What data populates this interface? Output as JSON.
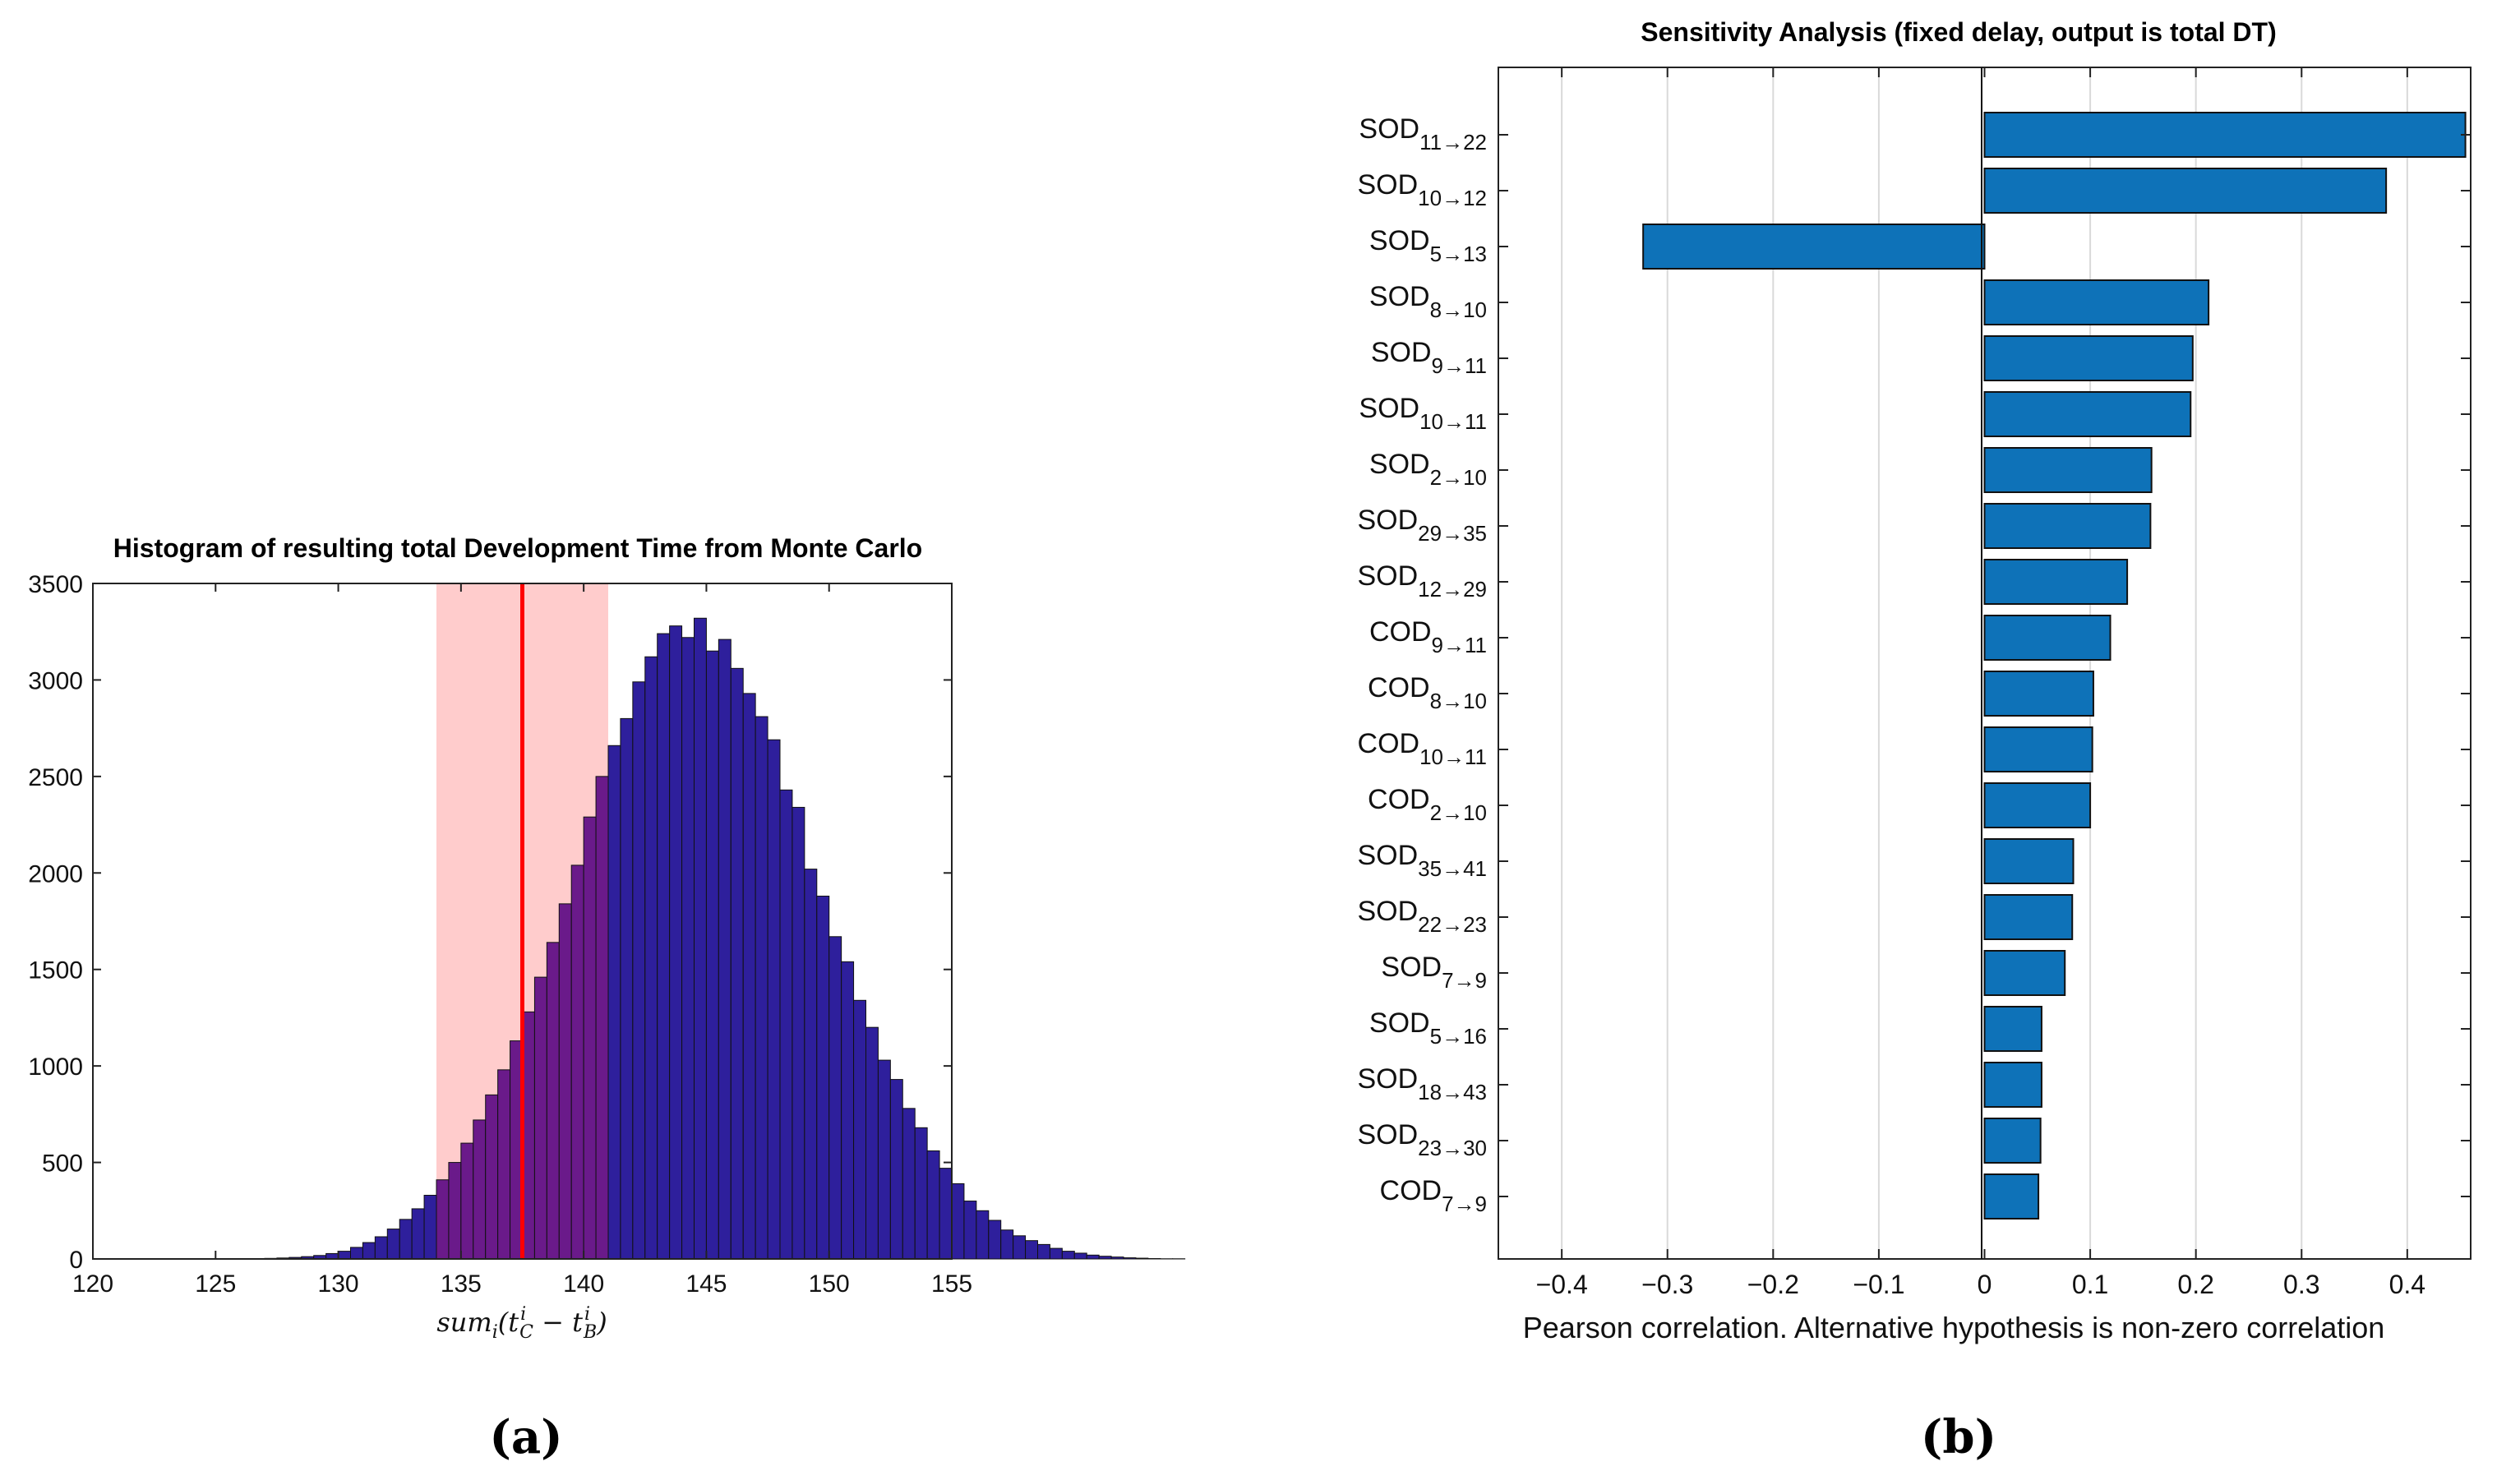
{
  "chart_data": [
    {
      "id": "a",
      "type": "bar",
      "subtype": "histogram",
      "title": "Histogram of resulting total Development Time from Monte Carlo",
      "xlabel": "sum_i(t_C^i − t_B^i)",
      "xlabel_parts": {
        "fn": "sum",
        "fn_sub": "i",
        "open": "(t",
        "c_sub": "C",
        "c_sup": "i",
        "minus": " − t",
        "b_sub": "B",
        "b_sup": "i",
        "close": ")"
      },
      "ylabel": "",
      "xlim": [
        120,
        155
      ],
      "ylim": [
        0,
        3500
      ],
      "xticks": [
        120,
        125,
        130,
        135,
        140,
        145,
        150,
        155
      ],
      "yticks": [
        0,
        500,
        1000,
        1500,
        2000,
        2500,
        3000,
        3500
      ],
      "bin_start": 120,
      "bin_width": 0.5,
      "counts": [
        0,
        0,
        0,
        0,
        0,
        0,
        0,
        0,
        0,
        0,
        0,
        1,
        1,
        2,
        3,
        5,
        8,
        12,
        18,
        28,
        40,
        60,
        85,
        115,
        155,
        205,
        260,
        330,
        410,
        500,
        600,
        720,
        850,
        980,
        1130,
        1280,
        1460,
        1640,
        1840,
        2040,
        2290,
        2500,
        2660,
        2800,
        2990,
        3120,
        3240,
        3280,
        3220,
        3320,
        3150,
        3210,
        3060,
        2930,
        2810,
        2690,
        2430,
        2340,
        2020,
        1880,
        1670,
        1540,
        1340,
        1200,
        1030,
        930,
        780,
        680,
        560,
        470,
        390,
        300,
        250,
        200,
        150,
        120,
        95,
        75,
        55,
        40,
        30,
        20,
        14,
        10,
        6,
        4,
        2,
        1,
        1,
        0
      ],
      "highlight_range": [
        134,
        141
      ],
      "highlight_color": "#ffcccc",
      "mean_line": 137.5,
      "mean_color": "#ff0000",
      "bar_color": "#2e1f9c",
      "bar_highlight_color": "#6a1a8a",
      "caption": "(a)"
    },
    {
      "id": "b",
      "type": "bar",
      "orientation": "horizontal",
      "title": "Sensitivity Analysis (fixed delay, output is total DT)",
      "xlabel": "Pearson correlation. Alternative hypothesis is non-zero correlation",
      "ylabel": "",
      "xlim": [
        -0.46,
        0.46
      ],
      "xticks": [
        -0.4,
        -0.3,
        -0.2,
        -0.1,
        0,
        0.1,
        0.2,
        0.3,
        0.4
      ],
      "xtick_labels": [
        "−0.4",
        "−0.3",
        "−0.2",
        "−0.1",
        "0",
        "0.1",
        "0.2",
        "0.3",
        "0.4"
      ],
      "grid": true,
      "bar_color": "#0e72b8",
      "categories": [
        {
          "base": "SOD",
          "sub": "11→22",
          "value": 0.455
        },
        {
          "base": "SOD",
          "sub": "10→12",
          "value": 0.38
        },
        {
          "base": "SOD",
          "sub": "5→13",
          "value": -0.323
        },
        {
          "base": "SOD",
          "sub": "8→10",
          "value": 0.212
        },
        {
          "base": "SOD",
          "sub": "9→11",
          "value": 0.197
        },
        {
          "base": "SOD",
          "sub": "10→11",
          "value": 0.195
        },
        {
          "base": "SOD",
          "sub": "2→10",
          "value": 0.158
        },
        {
          "base": "SOD",
          "sub": "29→35",
          "value": 0.157
        },
        {
          "base": "SOD",
          "sub": "12→29",
          "value": 0.135
        },
        {
          "base": "COD",
          "sub": "9→11",
          "value": 0.119
        },
        {
          "base": "COD",
          "sub": "8→10",
          "value": 0.103
        },
        {
          "base": "COD",
          "sub": "10→11",
          "value": 0.102
        },
        {
          "base": "COD",
          "sub": "2→10",
          "value": 0.1
        },
        {
          "base": "SOD",
          "sub": "35→41",
          "value": 0.084
        },
        {
          "base": "SOD",
          "sub": "22→23",
          "value": 0.083
        },
        {
          "base": "SOD",
          "sub": "7→9",
          "value": 0.076
        },
        {
          "base": "SOD",
          "sub": "5→16",
          "value": 0.054
        },
        {
          "base": "SOD",
          "sub": "18→43",
          "value": 0.054
        },
        {
          "base": "SOD",
          "sub": "23→30",
          "value": 0.053
        },
        {
          "base": "COD",
          "sub": "7→9",
          "value": 0.051
        }
      ],
      "caption": "(b)"
    }
  ]
}
